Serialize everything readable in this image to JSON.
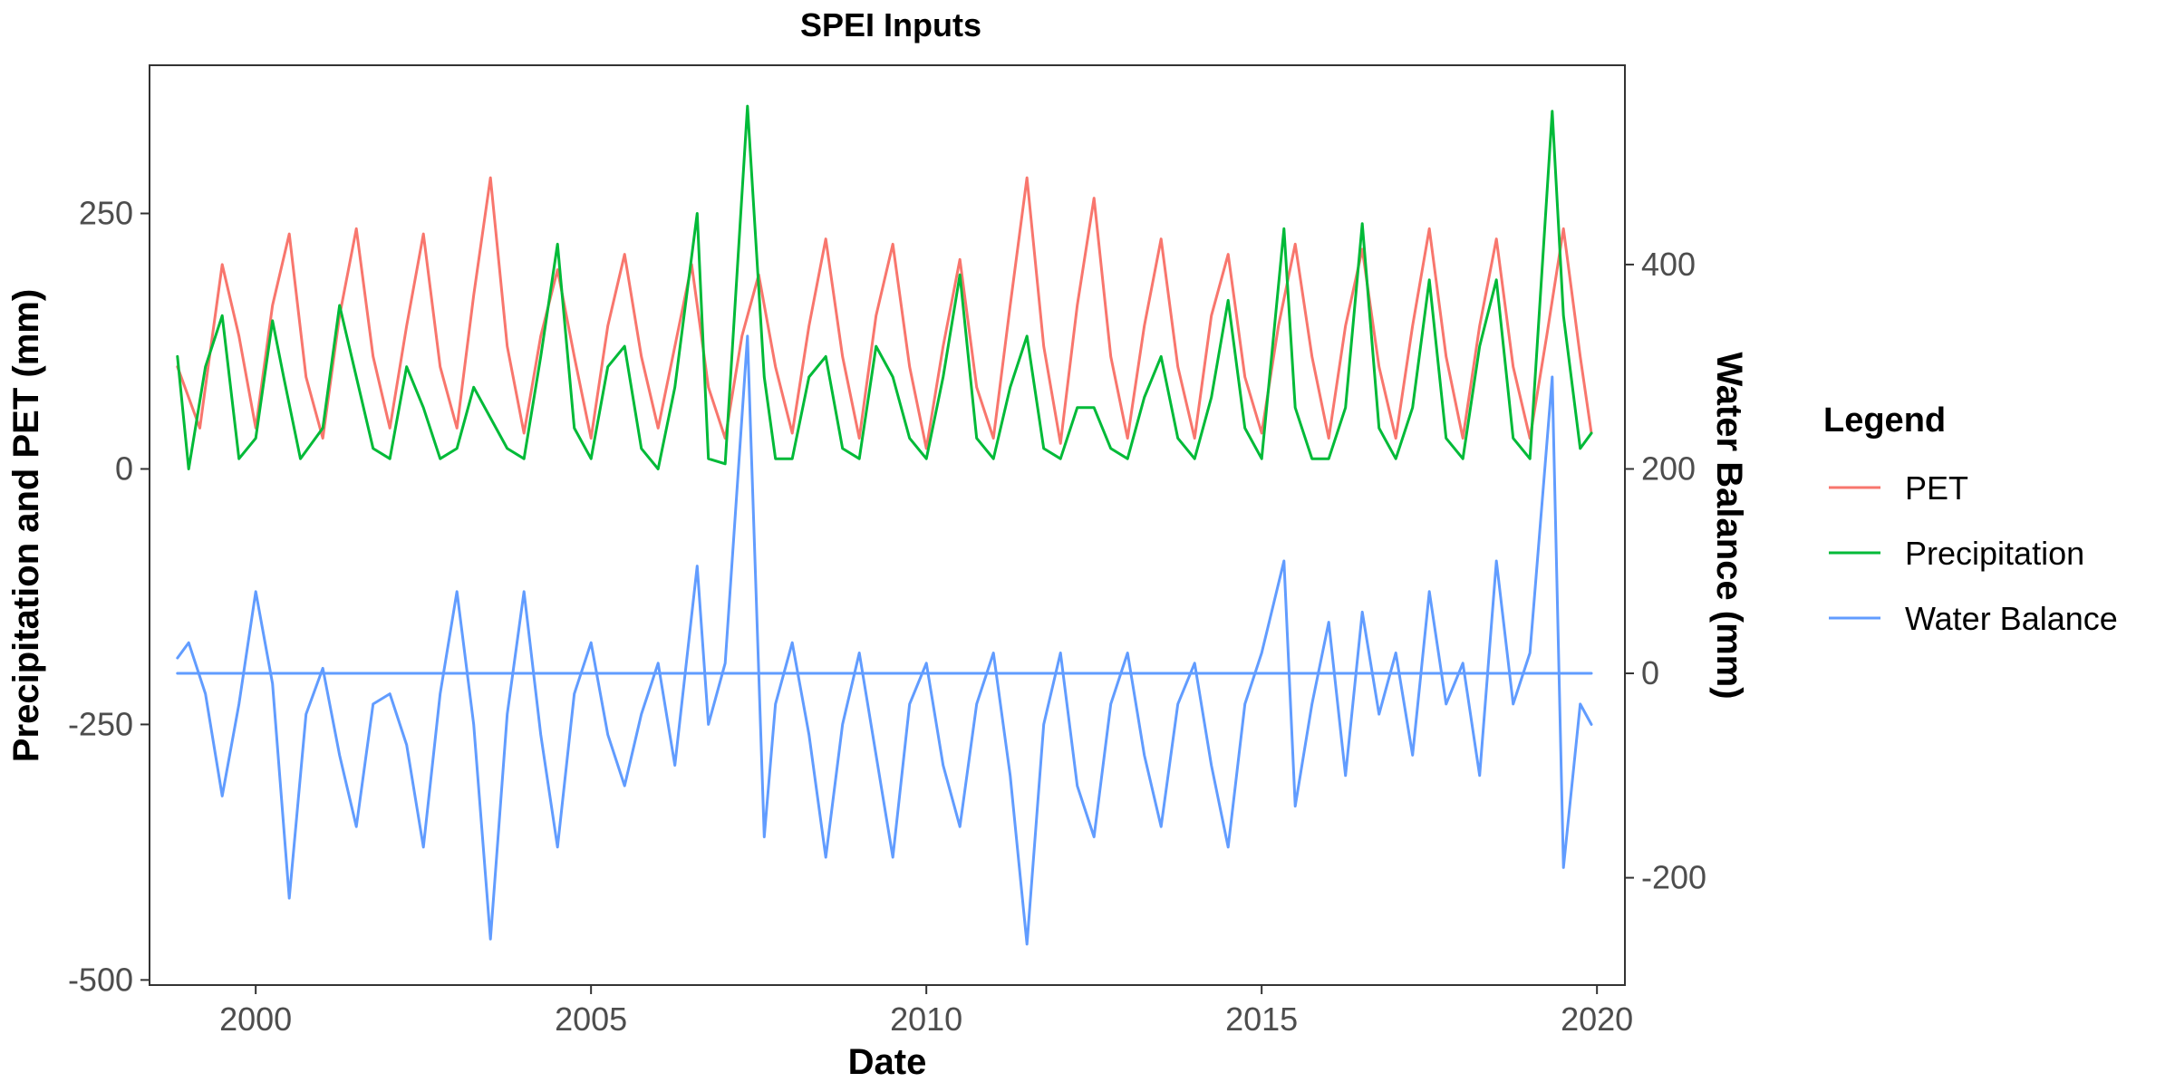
{
  "chart_data": {
    "type": "line",
    "title": "SPEI Inputs",
    "xlabel": "Date",
    "ylabel_left": "Precipitation and PET (mm)",
    "ylabel_right": "Water Balance (mm)",
    "xlim": [
      "1998-06-01",
      "2020-06-01"
    ],
    "ylim_left": [
      -505,
      395
    ],
    "ylim_right": [
      -305,
      595
    ],
    "x_ticks": [
      2000,
      2005,
      2010,
      2015,
      2020
    ],
    "y_ticks_left": [
      -500,
      -250,
      0,
      250
    ],
    "y_ticks_right": [
      -200,
      0,
      200,
      400
    ],
    "grid": false,
    "legend": {
      "title": "Legend",
      "position": "right",
      "entries": [
        "PET",
        "Precipitation",
        "Water Balance"
      ]
    },
    "colors": {
      "PET": "#F8766D",
      "Precipitation": "#00BA38",
      "Water Balance": "#619CFF"
    },
    "series": [
      {
        "name": "PET",
        "axis": "left",
        "color": "#F8766D",
        "x": [
          "1998-11",
          "1999-03",
          "1999-05",
          "1999-07",
          "1999-10",
          "2000-01",
          "2000-04",
          "2000-07",
          "2000-10",
          "2001-01",
          "2001-04",
          "2001-07",
          "2001-10",
          "2002-01",
          "2002-04",
          "2002-07",
          "2002-10",
          "2003-01",
          "2003-04",
          "2003-07",
          "2003-10",
          "2004-01",
          "2004-04",
          "2004-07",
          "2004-10",
          "2005-01",
          "2005-04",
          "2005-07",
          "2005-10",
          "2006-01",
          "2006-04",
          "2006-07",
          "2006-10",
          "2007-01",
          "2007-04",
          "2007-07",
          "2007-10",
          "2008-01",
          "2008-04",
          "2008-07",
          "2008-10",
          "2009-01",
          "2009-04",
          "2009-07",
          "2009-10",
          "2010-01",
          "2010-04",
          "2010-07",
          "2010-10",
          "2011-01",
          "2011-04",
          "2011-07",
          "2011-10",
          "2012-01",
          "2012-04",
          "2012-07",
          "2012-10",
          "2013-01",
          "2013-04",
          "2013-07",
          "2013-10",
          "2014-01",
          "2014-04",
          "2014-07",
          "2014-10",
          "2015-01",
          "2015-04",
          "2015-07",
          "2015-10",
          "2016-01",
          "2016-04",
          "2016-07",
          "2016-10",
          "2017-01",
          "2017-04",
          "2017-07",
          "2017-10",
          "2018-01",
          "2018-04",
          "2018-07",
          "2018-10",
          "2019-01",
          "2019-04",
          "2019-07",
          "2019-10",
          "2019-12"
        ],
        "values": [
          100,
          40,
          120,
          200,
          130,
          40,
          160,
          230,
          90,
          30,
          150,
          235,
          110,
          40,
          140,
          230,
          100,
          40,
          170,
          285,
          120,
          35,
          130,
          195,
          110,
          30,
          140,
          210,
          110,
          40,
          120,
          200,
          80,
          30,
          130,
          190,
          100,
          35,
          140,
          225,
          110,
          30,
          150,
          220,
          100,
          20,
          120,
          205,
          80,
          30,
          160,
          285,
          120,
          25,
          160,
          265,
          110,
          30,
          140,
          225,
          100,
          30,
          150,
          210,
          90,
          35,
          140,
          220,
          110,
          30,
          140,
          215,
          100,
          30,
          140,
          235,
          110,
          30,
          140,
          225,
          100,
          30,
          130,
          235,
          110,
          35
        ]
      },
      {
        "name": "Precipitation",
        "axis": "left",
        "color": "#00BA38",
        "x": [
          "1998-11",
          "1999-01",
          "1999-04",
          "1999-07",
          "1999-10",
          "2000-01",
          "2000-04",
          "2000-06",
          "2000-09",
          "2001-01",
          "2001-04",
          "2001-07",
          "2001-10",
          "2002-01",
          "2002-04",
          "2002-07",
          "2002-10",
          "2003-01",
          "2003-04",
          "2003-07",
          "2003-10",
          "2004-01",
          "2004-04",
          "2004-07",
          "2004-10",
          "2005-01",
          "2005-04",
          "2005-07",
          "2005-10",
          "2006-01",
          "2006-04",
          "2006-08",
          "2006-10",
          "2007-01",
          "2007-05",
          "2007-08",
          "2007-10",
          "2008-01",
          "2008-04",
          "2008-07",
          "2008-10",
          "2009-01",
          "2009-04",
          "2009-07",
          "2009-10",
          "2010-01",
          "2010-04",
          "2010-07",
          "2010-10",
          "2011-01",
          "2011-04",
          "2011-07",
          "2011-10",
          "2012-01",
          "2012-04",
          "2012-07",
          "2012-10",
          "2013-01",
          "2013-04",
          "2013-07",
          "2013-10",
          "2014-01",
          "2014-04",
          "2014-07",
          "2014-10",
          "2015-01",
          "2015-05",
          "2015-07",
          "2015-10",
          "2016-01",
          "2016-04",
          "2016-07",
          "2016-10",
          "2017-01",
          "2017-04",
          "2017-07",
          "2017-10",
          "2018-01",
          "2018-04",
          "2018-07",
          "2018-10",
          "2019-01",
          "2019-05",
          "2019-07",
          "2019-10",
          "2019-12"
        ],
        "values": [
          110,
          0,
          100,
          150,
          10,
          30,
          145,
          90,
          10,
          40,
          160,
          90,
          20,
          10,
          100,
          60,
          10,
          20,
          80,
          50,
          20,
          10,
          110,
          220,
          40,
          10,
          100,
          120,
          20,
          0,
          80,
          250,
          10,
          5,
          355,
          90,
          10,
          10,
          90,
          110,
          20,
          10,
          120,
          90,
          30,
          10,
          90,
          190,
          30,
          10,
          80,
          130,
          20,
          10,
          60,
          60,
          20,
          10,
          70,
          110,
          30,
          10,
          70,
          165,
          40,
          10,
          235,
          60,
          10,
          10,
          60,
          240,
          40,
          10,
          60,
          185,
          30,
          10,
          120,
          185,
          30,
          10,
          350,
          150,
          20,
          35
        ]
      },
      {
        "name": "Water Balance",
        "axis": "right",
        "color": "#619CFF",
        "x": [
          "1998-11",
          "1999-01",
          "1999-04",
          "1999-07",
          "1999-10",
          "2000-01",
          "2000-04",
          "2000-07",
          "2000-10",
          "2001-01",
          "2001-04",
          "2001-07",
          "2001-10",
          "2002-01",
          "2002-04",
          "2002-07",
          "2002-10",
          "2003-01",
          "2003-04",
          "2003-07",
          "2003-10",
          "2004-01",
          "2004-04",
          "2004-07",
          "2004-10",
          "2005-01",
          "2005-04",
          "2005-07",
          "2005-10",
          "2006-01",
          "2006-04",
          "2006-08",
          "2006-10",
          "2007-01",
          "2007-05",
          "2007-08",
          "2007-10",
          "2008-01",
          "2008-04",
          "2008-07",
          "2008-10",
          "2009-01",
          "2009-04",
          "2009-07",
          "2009-10",
          "2010-01",
          "2010-04",
          "2010-07",
          "2010-10",
          "2011-01",
          "2011-04",
          "2011-07",
          "2011-10",
          "2012-01",
          "2012-04",
          "2012-07",
          "2012-10",
          "2013-01",
          "2013-04",
          "2013-07",
          "2013-10",
          "2014-01",
          "2014-04",
          "2014-07",
          "2014-10",
          "2015-01",
          "2015-05",
          "2015-07",
          "2015-10",
          "2016-01",
          "2016-04",
          "2016-07",
          "2016-10",
          "2017-01",
          "2017-04",
          "2017-07",
          "2017-10",
          "2018-01",
          "2018-04",
          "2018-07",
          "2018-10",
          "2019-01",
          "2019-05",
          "2019-07",
          "2019-10",
          "2019-12"
        ],
        "values": [
          15,
          30,
          -20,
          -120,
          -30,
          80,
          -10,
          -220,
          -40,
          5,
          -80,
          -150,
          -30,
          -20,
          -70,
          -170,
          -20,
          80,
          -50,
          -260,
          -40,
          80,
          -60,
          -170,
          -20,
          30,
          -60,
          -110,
          -40,
          10,
          -90,
          105,
          -50,
          10,
          330,
          -160,
          -30,
          30,
          -60,
          -180,
          -50,
          20,
          -80,
          -180,
          -30,
          10,
          -90,
          -150,
          -30,
          20,
          -100,
          -265,
          -50,
          20,
          -110,
          -160,
          -30,
          20,
          -80,
          -150,
          -30,
          10,
          -90,
          -170,
          -30,
          20,
          110,
          -130,
          -30,
          50,
          -100,
          60,
          -40,
          20,
          -80,
          80,
          -30,
          10,
          -100,
          110,
          -30,
          20,
          290,
          -190,
          -30,
          -50
        ]
      },
      {
        "name": "Water Balance",
        "axis": "right",
        "color": "#619CFF",
        "x": [
          "1998-11",
          "2019-12"
        ],
        "values": [
          0,
          0
        ]
      }
    ]
  }
}
